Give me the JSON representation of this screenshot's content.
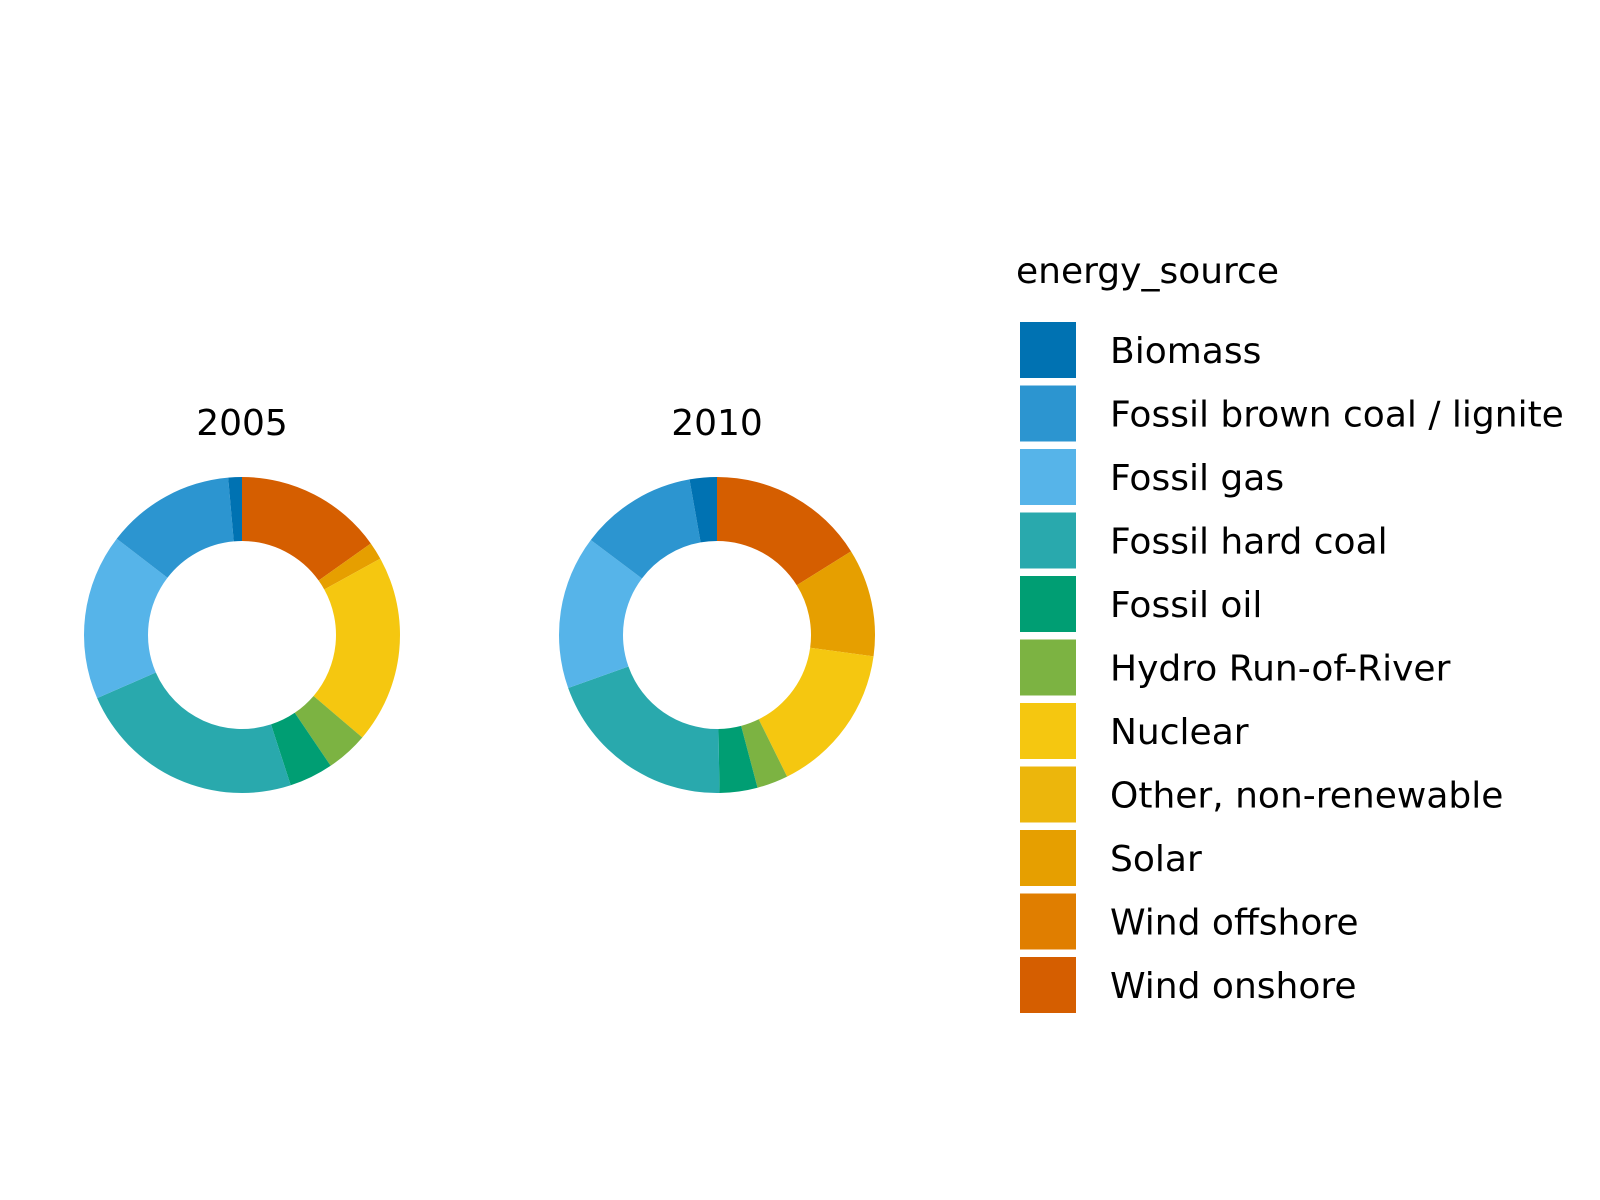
{
  "chart_data": {
    "type": "pie",
    "variant": "donut",
    "legend": {
      "title": "energy_source",
      "placement": "right",
      "entries": [
        {
          "name": "Biomass",
          "color": "#0072B2"
        },
        {
          "name": "Fossil brown coal / lignite",
          "color": "#2C95D0"
        },
        {
          "name": "Fossil gas",
          "color": "#56B4E9"
        },
        {
          "name": "Fossil hard coal",
          "color": "#29A9AD"
        },
        {
          "name": "Fossil oil",
          "color": "#009E73"
        },
        {
          "name": "Hydro Run-of-River",
          "color": "#7CB342"
        },
        {
          "name": "Nuclear",
          "color": "#F5C710"
        },
        {
          "name": "Other, non-renewable",
          "color": "#ECB60C"
        },
        {
          "name": "Solar",
          "color": "#E69F00"
        },
        {
          "name": "Wind offshore",
          "color": "#E07E00"
        },
        {
          "name": "Wind onshore",
          "color": "#D55E00"
        }
      ]
    },
    "charts": [
      {
        "title": "2005",
        "slices": [
          {
            "label": "Wind onshore",
            "value": 15.2
          },
          {
            "label": "Wind offshore",
            "value": 0.0
          },
          {
            "label": "Solar",
            "value": 1.8
          },
          {
            "label": "Other, non-renewable",
            "value": 0.0
          },
          {
            "label": "Nuclear",
            "value": 19.3
          },
          {
            "label": "Hydro Run-of-River",
            "value": 4.3
          },
          {
            "label": "Fossil oil",
            "value": 4.5
          },
          {
            "label": "Fossil hard coal",
            "value": 23.5
          },
          {
            "label": "Fossil gas",
            "value": 17.0
          },
          {
            "label": "Fossil brown coal / lignite",
            "value": 13.2
          },
          {
            "label": "Biomass",
            "value": 1.4
          }
        ]
      },
      {
        "title": "2010",
        "slices": [
          {
            "label": "Wind onshore",
            "value": 16.2
          },
          {
            "label": "Wind offshore",
            "value": 0.0
          },
          {
            "label": "Solar",
            "value": 11.1
          },
          {
            "label": "Other, non-renewable",
            "value": 0.0
          },
          {
            "label": "Nuclear",
            "value": 15.6
          },
          {
            "label": "Hydro Run-of-River",
            "value": 3.2
          },
          {
            "label": "Fossil oil",
            "value": 3.9
          },
          {
            "label": "Fossil hard coal",
            "value": 19.9
          },
          {
            "label": "Fossil gas",
            "value": 15.8
          },
          {
            "label": "Fossil brown coal / lignite",
            "value": 12.0
          },
          {
            "label": "Biomass",
            "value": 2.8
          }
        ]
      }
    ]
  }
}
